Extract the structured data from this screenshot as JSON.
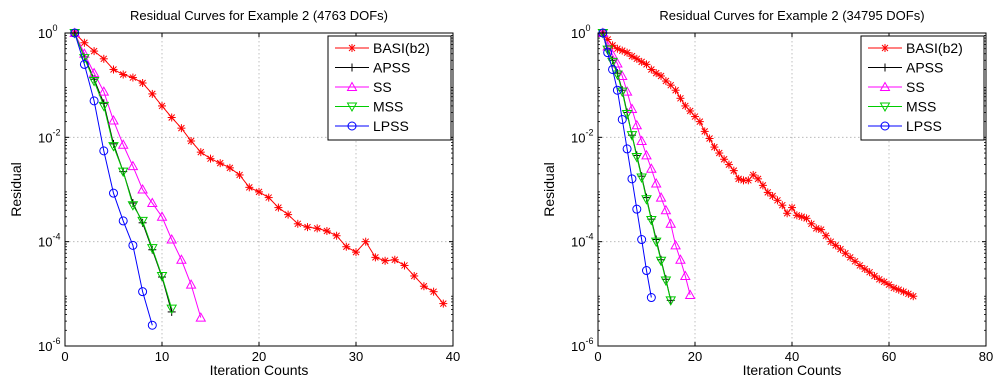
{
  "chart_data": [
    {
      "type": "line",
      "title": "Residual Curves for Example 2 (4763 DOFs)",
      "xlabel": "Iteration Counts",
      "ylabel": "Residual",
      "xlim": [
        0,
        40
      ],
      "ylim": [
        1e-06,
        1
      ],
      "yscale": "log",
      "grid": true,
      "legend_position": "top-right",
      "xticks": [
        "0",
        "10",
        "20",
        "30",
        "40"
      ],
      "yticks": [
        {
          "value": 1,
          "base": "10",
          "exp": "0"
        },
        {
          "value": 0.01,
          "base": "10",
          "exp": "-2"
        },
        {
          "value": 0.0001,
          "base": "10",
          "exp": "-4"
        },
        {
          "value": 1e-06,
          "base": "10",
          "exp": "-6"
        }
      ],
      "series": [
        {
          "name": "BASI(b2)",
          "color": "#ff0000",
          "marker": "star",
          "x": [
            1,
            2,
            3,
            4,
            5,
            6,
            7,
            8,
            9,
            10,
            11,
            12,
            13,
            14,
            15,
            16,
            17,
            18,
            19,
            20,
            21,
            22,
            23,
            24,
            25,
            26,
            27,
            28,
            29,
            30,
            31,
            32,
            33,
            34,
            35,
            36,
            37,
            38,
            39
          ],
          "y": [
            1,
            0.65,
            0.45,
            0.32,
            0.2,
            0.16,
            0.14,
            0.11,
            0.068,
            0.04,
            0.024,
            0.015,
            0.0085,
            0.0052,
            0.0039,
            0.0032,
            0.0026,
            0.0019,
            0.0011,
            0.0009,
            0.0007,
            0.00045,
            0.00033,
            0.00022,
            0.00019,
            0.00018,
            0.00016,
            0.00013,
            8e-05,
            6.3e-05,
            0.0001,
            5e-05,
            4.3e-05,
            4.5e-05,
            3.5e-05,
            2.2e-05,
            1.4e-05,
            1.1e-05,
            6.5e-06
          ]
        },
        {
          "name": "APSS",
          "color": "#000000",
          "marker": "plus",
          "x": [
            1,
            2,
            3,
            4,
            5,
            6,
            7,
            8,
            9,
            10,
            11
          ],
          "y": [
            1,
            0.35,
            0.13,
            0.045,
            0.0075,
            0.0022,
            0.00055,
            0.00023,
            7e-05,
            2.1e-05,
            4.5e-06
          ]
        },
        {
          "name": "SS",
          "color": "#ff00ff",
          "marker": "triangle-up",
          "x": [
            1,
            2,
            3,
            4,
            5,
            6,
            7,
            8,
            9,
            10,
            11,
            12,
            13,
            14
          ],
          "y": [
            1,
            0.4,
            0.17,
            0.075,
            0.021,
            0.0072,
            0.0028,
            0.001,
            0.00055,
            0.0003,
            0.00011,
            4.5e-05,
            1.5e-05,
            3.5e-06
          ]
        },
        {
          "name": "MSS",
          "color": "#00cc00",
          "marker": "triangle-down",
          "x": [
            1,
            2,
            3,
            4,
            5,
            6,
            7,
            8,
            9,
            10,
            11
          ],
          "y": [
            1,
            0.33,
            0.12,
            0.04,
            0.0068,
            0.0022,
            0.0005,
            0.00025,
            7.5e-05,
            2.2e-05,
            5.2e-06
          ]
        },
        {
          "name": "LPSS",
          "color": "#0000ff",
          "marker": "circle",
          "x": [
            1,
            2,
            3,
            4,
            5,
            6,
            7,
            8,
            9
          ],
          "y": [
            1,
            0.25,
            0.05,
            0.0055,
            0.00085,
            0.00025,
            8.5e-05,
            1.1e-05,
            2.5e-06
          ]
        }
      ]
    },
    {
      "type": "line",
      "title": "Residual Curves for Example 2 (34795 DOFs)",
      "xlabel": "Iteration Counts",
      "ylabel": "Residual",
      "xlim": [
        0,
        80
      ],
      "ylim": [
        1e-06,
        1
      ],
      "yscale": "log",
      "grid": true,
      "legend_position": "top-right",
      "xticks": [
        "0",
        "20",
        "40",
        "60",
        "80"
      ],
      "yticks": [
        {
          "value": 1,
          "base": "10",
          "exp": "0"
        },
        {
          "value": 0.01,
          "base": "10",
          "exp": "-2"
        },
        {
          "value": 0.0001,
          "base": "10",
          "exp": "-4"
        },
        {
          "value": 1e-06,
          "base": "10",
          "exp": "-6"
        }
      ],
      "series": [
        {
          "name": "BASI(b2)",
          "color": "#ff0000",
          "marker": "star",
          "x": [
            1,
            2,
            3,
            4,
            5,
            6,
            7,
            8,
            9,
            10,
            11,
            12,
            13,
            14,
            15,
            16,
            17,
            18,
            19,
            20,
            21,
            22,
            23,
            24,
            25,
            26,
            27,
            28,
            29,
            30,
            31,
            32,
            33,
            34,
            35,
            36,
            37,
            38,
            39,
            40,
            41,
            42,
            43,
            44,
            45,
            46,
            47,
            48,
            49,
            50,
            51,
            52,
            53,
            54,
            55,
            56,
            57,
            58,
            59,
            60,
            61,
            62,
            63,
            64,
            65
          ],
          "y": [
            1,
            0.75,
            0.58,
            0.5,
            0.46,
            0.42,
            0.36,
            0.32,
            0.28,
            0.25,
            0.2,
            0.17,
            0.15,
            0.12,
            0.1,
            0.08,
            0.056,
            0.04,
            0.032,
            0.025,
            0.02,
            0.013,
            0.0095,
            0.0065,
            0.005,
            0.0038,
            0.003,
            0.0023,
            0.0016,
            0.0015,
            0.0015,
            0.0019,
            0.0016,
            0.0012,
            0.00088,
            0.00075,
            0.00062,
            0.0005,
            0.00035,
            0.00045,
            0.00032,
            0.0003,
            0.00028,
            0.00022,
            0.00018,
            0.00017,
            0.00013,
            0.0001,
            8.5e-05,
            7.2e-05,
            6e-05,
            5e-05,
            4.2e-05,
            3.5e-05,
            3e-05,
            2.6e-05,
            2.2e-05,
            1.9e-05,
            1.7e-05,
            1.5e-05,
            1.3e-05,
            1.2e-05,
            1.1e-05,
            1e-05,
            9e-06
          ]
        },
        {
          "name": "APSS",
          "color": "#000000",
          "marker": "plus",
          "x": [
            1,
            2,
            3,
            4,
            5,
            6,
            7,
            8,
            9,
            10,
            11,
            12,
            13,
            14,
            15
          ],
          "y": [
            1,
            0.5,
            0.3,
            0.17,
            0.08,
            0.03,
            0.011,
            0.0045,
            0.0018,
            0.0007,
            0.00027,
            0.00011,
            4.5e-05,
            1.9e-05,
            7.5e-06
          ]
        },
        {
          "name": "SS",
          "color": "#ff00ff",
          "marker": "triangle-up",
          "x": [
            1,
            2,
            3,
            4,
            5,
            6,
            7,
            8,
            9,
            10,
            11,
            12,
            13,
            14,
            15,
            16,
            17,
            18,
            19
          ],
          "y": [
            1,
            0.55,
            0.38,
            0.26,
            0.15,
            0.075,
            0.035,
            0.017,
            0.0085,
            0.0045,
            0.0025,
            0.0013,
            0.0007,
            0.0004,
            0.00022,
            8.5e-05,
            4.5e-05,
            2.2e-05,
            9.5e-06
          ]
        },
        {
          "name": "MSS",
          "color": "#00cc00",
          "marker": "triangle-down",
          "x": [
            1,
            2,
            3,
            4,
            5,
            6,
            7,
            8,
            9,
            10,
            11,
            12,
            13,
            14,
            15
          ],
          "y": [
            1,
            0.48,
            0.28,
            0.16,
            0.075,
            0.028,
            0.011,
            0.0042,
            0.0017,
            0.00065,
            0.00026,
            0.0001,
            4.3e-05,
            1.8e-05,
            7.5e-06
          ]
        },
        {
          "name": "LPSS",
          "color": "#0000ff",
          "marker": "circle",
          "x": [
            1,
            2,
            3,
            4,
            5,
            6,
            7,
            8,
            9,
            10,
            11
          ],
          "y": [
            1,
            0.42,
            0.2,
            0.08,
            0.022,
            0.006,
            0.0016,
            0.00042,
            0.00011,
            2.8e-05,
            8.5e-06
          ]
        }
      ]
    }
  ]
}
